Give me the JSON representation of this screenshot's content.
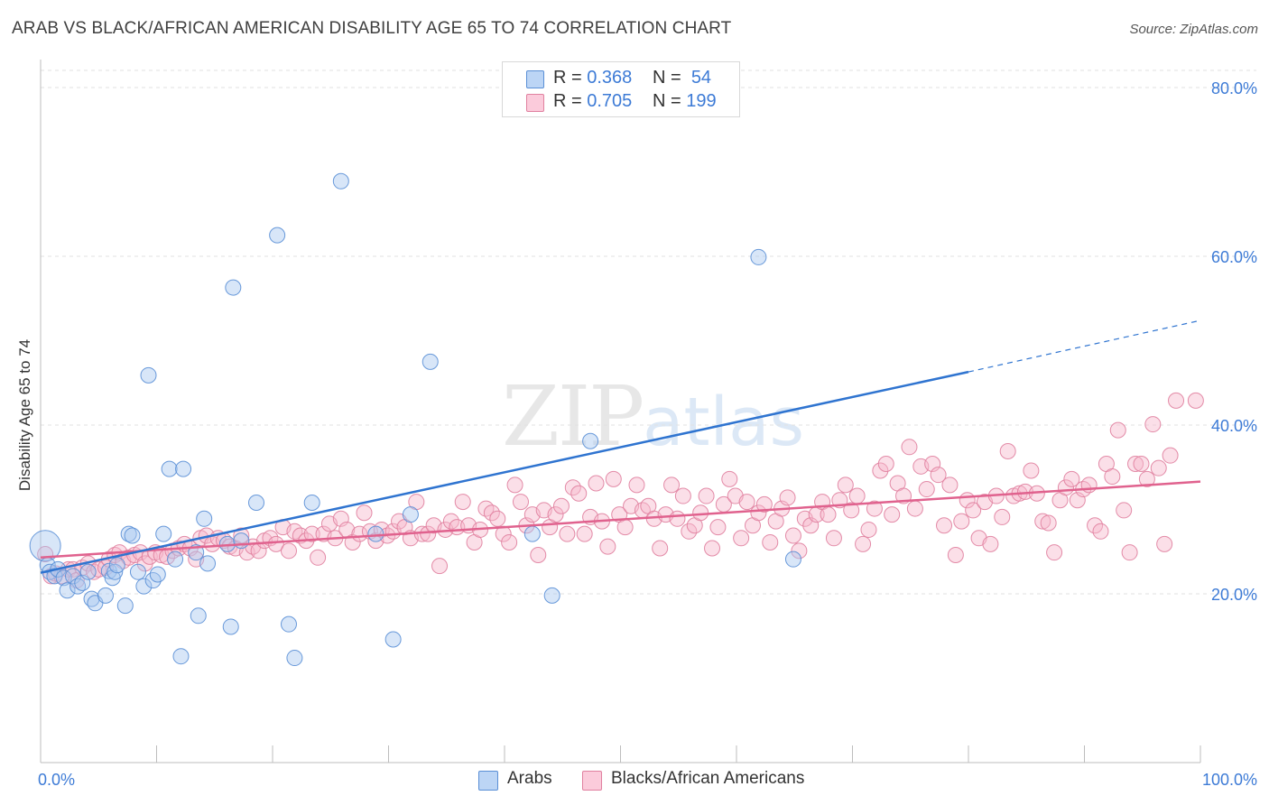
{
  "title": "ARAB VS BLACK/AFRICAN AMERICAN DISABILITY AGE 65 TO 74 CORRELATION CHART",
  "source": "Source: ZipAtlas.com",
  "watermark": {
    "zip": "ZIP",
    "atlas": "atlas"
  },
  "legend": {
    "rows": [
      {
        "r_label": "R =",
        "r_value": "0.368",
        "n_label": "N =",
        "n_value": "54",
        "color": "#a8c8f0"
      },
      {
        "r_label": "R =",
        "r_value": "0.705",
        "n_label": "N =",
        "n_value": "199",
        "color": "#f7b8cc"
      }
    ]
  },
  "bottom_legend": [
    {
      "label": "Arabs",
      "color": "#a8c8f0"
    },
    {
      "label": "Blacks/African Americans",
      "color": "#f7b8cc"
    }
  ],
  "chart_data": {
    "type": "scatter",
    "title": "ARAB VS BLACK/AFRICAN AMERICAN DISABILITY AGE 65 TO 74 CORRELATION CHART",
    "xlabel": "",
    "ylabel": "Disability Age 65 to 74",
    "xlim": [
      0,
      100
    ],
    "ylim": [
      0,
      80
    ],
    "x_tick_labels": [
      "0.0%",
      "100.0%"
    ],
    "y_ticks": [
      20,
      40,
      60,
      80
    ],
    "y_tick_labels": [
      "20.0%",
      "40.0%",
      "60.0%",
      "80.0%"
    ],
    "grid": true,
    "legend_position": "top-center",
    "series": [
      {
        "name": "Arabs",
        "color": "#a8c8f0",
        "stroke": "#5a8fd6",
        "trend": {
          "x": [
            0,
            80
          ],
          "y": [
            22.5,
            46.3
          ],
          "dashed_to": [
            100,
            52.4
          ],
          "color": "#2f74d0"
        },
        "points": [
          [
            0.4,
            25.7
          ],
          [
            0.6,
            23.4
          ],
          [
            0.8,
            22.6
          ],
          [
            1.2,
            22.1
          ],
          [
            1.5,
            22.9
          ],
          [
            2.0,
            21.9
          ],
          [
            2.3,
            20.4
          ],
          [
            2.8,
            22.1
          ],
          [
            3.2,
            20.9
          ],
          [
            3.6,
            21.3
          ],
          [
            4.1,
            22.6
          ],
          [
            4.4,
            19.4
          ],
          [
            4.7,
            18.9
          ],
          [
            5.6,
            19.8
          ],
          [
            5.9,
            22.7
          ],
          [
            6.2,
            21.9
          ],
          [
            6.4,
            22.6
          ],
          [
            6.6,
            23.4
          ],
          [
            7.3,
            18.6
          ],
          [
            7.6,
            27.1
          ],
          [
            7.9,
            26.9
          ],
          [
            8.4,
            22.6
          ],
          [
            8.9,
            20.9
          ],
          [
            9.3,
            45.9
          ],
          [
            9.7,
            21.6
          ],
          [
            10.1,
            22.3
          ],
          [
            10.6,
            27.1
          ],
          [
            11.1,
            34.8
          ],
          [
            11.6,
            24.1
          ],
          [
            12.1,
            12.6
          ],
          [
            12.3,
            34.8
          ],
          [
            13.4,
            24.9
          ],
          [
            13.6,
            17.4
          ],
          [
            14.1,
            28.9
          ],
          [
            14.4,
            23.6
          ],
          [
            16.1,
            25.9
          ],
          [
            16.4,
            16.1
          ],
          [
            16.6,
            56.3
          ],
          [
            17.3,
            26.3
          ],
          [
            18.6,
            30.8
          ],
          [
            20.4,
            62.5
          ],
          [
            21.4,
            16.4
          ],
          [
            21.9,
            12.4
          ],
          [
            23.4,
            30.8
          ],
          [
            25.9,
            68.9
          ],
          [
            28.9,
            27.1
          ],
          [
            30.4,
            14.6
          ],
          [
            31.9,
            29.4
          ],
          [
            33.6,
            47.5
          ],
          [
            42.4,
            27.1
          ],
          [
            44.1,
            19.8
          ],
          [
            47.4,
            38.1
          ],
          [
            61.9,
            59.9
          ],
          [
            64.9,
            24.1
          ]
        ]
      },
      {
        "name": "Blacks/African Americans",
        "color": "#f7b8cc",
        "stroke": "#e0809f",
        "trend": {
          "x": [
            0,
            100
          ],
          "y": [
            24.3,
            33.3
          ],
          "color": "#e0628e"
        },
        "points": [
          [
            0.4,
            24.7
          ],
          [
            0.9,
            22.1
          ],
          [
            1.3,
            22.4
          ],
          [
            1.8,
            22.1
          ],
          [
            2.4,
            22.9
          ],
          [
            2.8,
            22.9
          ],
          [
            3.1,
            21.6
          ],
          [
            3.6,
            23.1
          ],
          [
            4.1,
            23.6
          ],
          [
            4.6,
            22.6
          ],
          [
            5.0,
            22.9
          ],
          [
            5.6,
            23.1
          ],
          [
            5.9,
            24.1
          ],
          [
            6.4,
            24.6
          ],
          [
            6.8,
            24.9
          ],
          [
            7.1,
            23.9
          ],
          [
            7.6,
            24.3
          ],
          [
            8.1,
            24.6
          ],
          [
            8.6,
            24.9
          ],
          [
            9.0,
            23.6
          ],
          [
            9.4,
            24.4
          ],
          [
            9.9,
            24.9
          ],
          [
            10.4,
            24.6
          ],
          [
            10.9,
            24.4
          ],
          [
            11.4,
            25.1
          ],
          [
            11.9,
            25.4
          ],
          [
            12.4,
            25.9
          ],
          [
            12.9,
            25.4
          ],
          [
            13.4,
            24.1
          ],
          [
            13.8,
            26.6
          ],
          [
            14.3,
            26.9
          ],
          [
            14.8,
            25.9
          ],
          [
            15.3,
            26.6
          ],
          [
            15.8,
            26.3
          ],
          [
            16.3,
            25.6
          ],
          [
            16.8,
            25.4
          ],
          [
            17.3,
            26.9
          ],
          [
            17.8,
            24.9
          ],
          [
            18.3,
            25.6
          ],
          [
            18.8,
            25.1
          ],
          [
            19.3,
            26.3
          ],
          [
            19.8,
            26.6
          ],
          [
            20.3,
            25.9
          ],
          [
            20.9,
            27.9
          ],
          [
            21.4,
            25.1
          ],
          [
            21.9,
            27.4
          ],
          [
            22.4,
            26.9
          ],
          [
            22.9,
            26.3
          ],
          [
            23.4,
            27.1
          ],
          [
            23.9,
            24.3
          ],
          [
            24.4,
            27.1
          ],
          [
            24.9,
            28.3
          ],
          [
            25.4,
            26.6
          ],
          [
            25.9,
            28.9
          ],
          [
            26.4,
            27.6
          ],
          [
            26.9,
            26.1
          ],
          [
            27.5,
            27.1
          ],
          [
            27.9,
            29.6
          ],
          [
            28.4,
            27.4
          ],
          [
            28.9,
            26.3
          ],
          [
            29.4,
            27.6
          ],
          [
            29.9,
            26.9
          ],
          [
            30.4,
            27.4
          ],
          [
            30.9,
            28.6
          ],
          [
            31.4,
            27.9
          ],
          [
            31.9,
            26.6
          ],
          [
            32.4,
            30.9
          ],
          [
            32.9,
            27.1
          ],
          [
            33.4,
            27.1
          ],
          [
            33.9,
            28.1
          ],
          [
            34.4,
            23.3
          ],
          [
            34.9,
            27.6
          ],
          [
            35.4,
            28.6
          ],
          [
            35.9,
            27.9
          ],
          [
            36.4,
            30.9
          ],
          [
            36.9,
            28.1
          ],
          [
            37.4,
            26.1
          ],
          [
            37.9,
            27.6
          ],
          [
            38.4,
            30.1
          ],
          [
            38.9,
            29.6
          ],
          [
            39.4,
            28.9
          ],
          [
            39.9,
            27.1
          ],
          [
            40.4,
            26.1
          ],
          [
            40.9,
            32.9
          ],
          [
            41.4,
            30.9
          ],
          [
            41.9,
            28.1
          ],
          [
            42.4,
            29.4
          ],
          [
            42.9,
            24.6
          ],
          [
            43.4,
            29.9
          ],
          [
            43.9,
            27.9
          ],
          [
            44.4,
            29.4
          ],
          [
            44.9,
            30.4
          ],
          [
            45.4,
            27.1
          ],
          [
            45.9,
            32.6
          ],
          [
            46.4,
            31.9
          ],
          [
            46.9,
            27.1
          ],
          [
            47.4,
            29.1
          ],
          [
            47.9,
            33.1
          ],
          [
            48.4,
            28.6
          ],
          [
            48.9,
            25.6
          ],
          [
            49.4,
            33.6
          ],
          [
            49.9,
            29.4
          ],
          [
            50.4,
            27.9
          ],
          [
            50.9,
            30.4
          ],
          [
            51.4,
            32.9
          ],
          [
            51.9,
            29.9
          ],
          [
            52.4,
            30.4
          ],
          [
            52.9,
            28.9
          ],
          [
            53.4,
            25.4
          ],
          [
            53.9,
            29.4
          ],
          [
            54.4,
            32.9
          ],
          [
            54.9,
            28.9
          ],
          [
            55.4,
            31.6
          ],
          [
            55.9,
            27.4
          ],
          [
            56.4,
            28.1
          ],
          [
            56.9,
            29.6
          ],
          [
            57.4,
            31.6
          ],
          [
            57.9,
            25.4
          ],
          [
            58.4,
            27.9
          ],
          [
            58.9,
            30.6
          ],
          [
            59.4,
            33.6
          ],
          [
            59.9,
            31.6
          ],
          [
            60.4,
            26.6
          ],
          [
            60.9,
            30.9
          ],
          [
            61.4,
            28.1
          ],
          [
            61.9,
            29.6
          ],
          [
            62.4,
            30.6
          ],
          [
            62.9,
            26.1
          ],
          [
            63.4,
            28.6
          ],
          [
            63.9,
            30.1
          ],
          [
            64.4,
            31.4
          ],
          [
            64.9,
            26.9
          ],
          [
            65.4,
            25.1
          ],
          [
            65.9,
            28.9
          ],
          [
            66.4,
            28.1
          ],
          [
            66.9,
            29.4
          ],
          [
            67.4,
            30.9
          ],
          [
            67.9,
            29.4
          ],
          [
            68.4,
            26.6
          ],
          [
            68.9,
            31.1
          ],
          [
            69.4,
            32.9
          ],
          [
            69.9,
            29.9
          ],
          [
            70.4,
            31.6
          ],
          [
            70.9,
            25.9
          ],
          [
            71.4,
            27.6
          ],
          [
            71.9,
            30.1
          ],
          [
            72.4,
            34.6
          ],
          [
            72.9,
            35.4
          ],
          [
            73.4,
            29.4
          ],
          [
            73.9,
            33.1
          ],
          [
            74.4,
            31.6
          ],
          [
            74.9,
            37.4
          ],
          [
            75.4,
            30.1
          ],
          [
            75.9,
            35.1
          ],
          [
            76.4,
            32.4
          ],
          [
            76.9,
            35.4
          ],
          [
            77.4,
            34.1
          ],
          [
            77.9,
            28.1
          ],
          [
            78.4,
            32.9
          ],
          [
            78.9,
            24.6
          ],
          [
            79.4,
            28.6
          ],
          [
            79.9,
            31.1
          ],
          [
            80.4,
            29.9
          ],
          [
            80.9,
            26.6
          ],
          [
            81.4,
            30.9
          ],
          [
            81.9,
            25.9
          ],
          [
            82.4,
            31.6
          ],
          [
            82.9,
            29.1
          ],
          [
            83.4,
            36.9
          ],
          [
            83.9,
            31.6
          ],
          [
            84.4,
            31.9
          ],
          [
            84.9,
            32.1
          ],
          [
            85.4,
            34.6
          ],
          [
            85.9,
            31.9
          ],
          [
            86.4,
            28.6
          ],
          [
            86.9,
            28.4
          ],
          [
            87.4,
            24.9
          ],
          [
            87.9,
            31.1
          ],
          [
            88.4,
            32.6
          ],
          [
            88.9,
            33.6
          ],
          [
            89.4,
            31.1
          ],
          [
            89.9,
            32.4
          ],
          [
            90.4,
            32.9
          ],
          [
            90.9,
            28.1
          ],
          [
            91.4,
            27.4
          ],
          [
            91.9,
            35.4
          ],
          [
            92.4,
            33.9
          ],
          [
            92.9,
            39.4
          ],
          [
            93.4,
            29.9
          ],
          [
            93.9,
            24.9
          ],
          [
            94.4,
            35.4
          ],
          [
            94.9,
            35.4
          ],
          [
            95.4,
            33.6
          ],
          [
            95.9,
            40.1
          ],
          [
            96.4,
            34.9
          ],
          [
            96.9,
            25.9
          ],
          [
            97.4,
            36.4
          ],
          [
            97.9,
            42.9
          ],
          [
            99.6,
            42.9
          ]
        ]
      }
    ]
  }
}
